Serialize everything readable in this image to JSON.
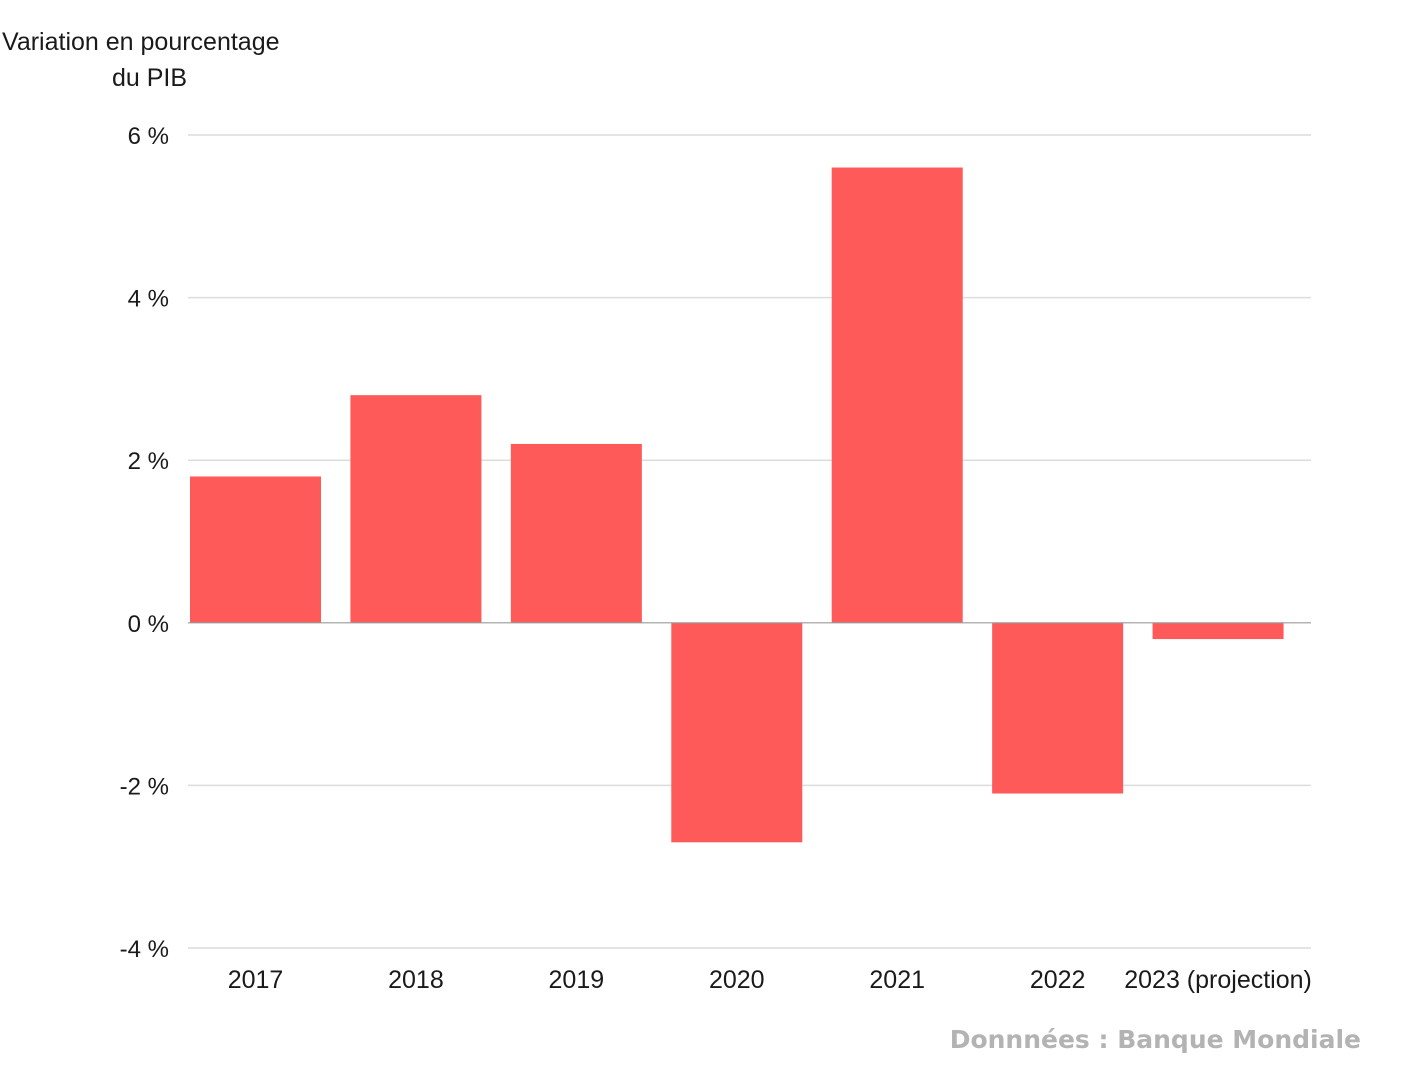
{
  "chart_data": {
    "type": "bar",
    "ylabel_lines": [
      "Variation en pourcentage",
      "du PIB"
    ],
    "categories": [
      "2017",
      "2018",
      "2019",
      "2020",
      "2021",
      "2022",
      "2023 (projection)"
    ],
    "values": [
      1.8,
      2.8,
      2.2,
      -2.7,
      5.6,
      -2.1,
      -0.2
    ],
    "ylim": [
      -4,
      6
    ],
    "yticks": [
      6,
      4,
      2,
      0,
      -2,
      -4
    ],
    "ytick_labels": [
      "6 %",
      "4 %",
      "2 %",
      "0 %",
      "-2 %",
      "-4 %"
    ],
    "grid": true,
    "bar_color": "#ff5a5a",
    "source": "Donnnées : Banque Mondiale"
  }
}
